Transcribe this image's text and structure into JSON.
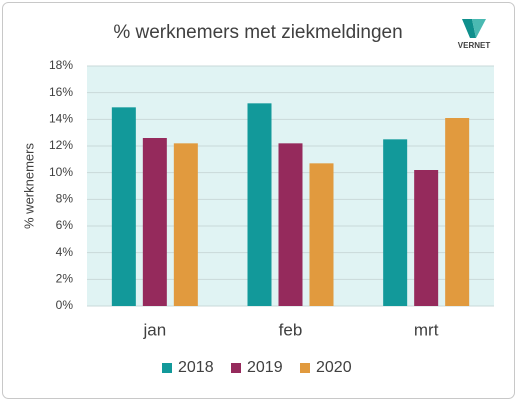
{
  "logo": "VERNET",
  "chart_data": {
    "type": "bar",
    "title": "% werknemers met ziekmeldingen",
    "y_label": "% werknemers",
    "categories": [
      "jan",
      "feb",
      "mrt"
    ],
    "series": [
      {
        "name": "2018",
        "color": "#12999a",
        "values": [
          14.9,
          15.2,
          12.5
        ]
      },
      {
        "name": "2019",
        "color": "#952a5c",
        "values": [
          12.6,
          12.2,
          10.2
        ]
      },
      {
        "name": "2020",
        "color": "#e19a3e",
        "values": [
          12.2,
          10.7,
          14.1
        ]
      }
    ],
    "ylim": [
      0,
      18
    ],
    "yticks": [
      {
        "value": 0,
        "label": "0%"
      },
      {
        "value": 2,
        "label": "2%"
      },
      {
        "value": 4,
        "label": "4%"
      },
      {
        "value": 6,
        "label": "6%"
      },
      {
        "value": 8,
        "label": "8%"
      },
      {
        "value": 10,
        "label": "10%"
      },
      {
        "value": 12,
        "label": "12%"
      },
      {
        "value": 14,
        "label": "14%"
      },
      {
        "value": 16,
        "label": "16%"
      },
      {
        "value": 18,
        "label": "18%"
      }
    ],
    "grid": true,
    "legend": "bottom",
    "plot_background": "#e0f3f3"
  }
}
